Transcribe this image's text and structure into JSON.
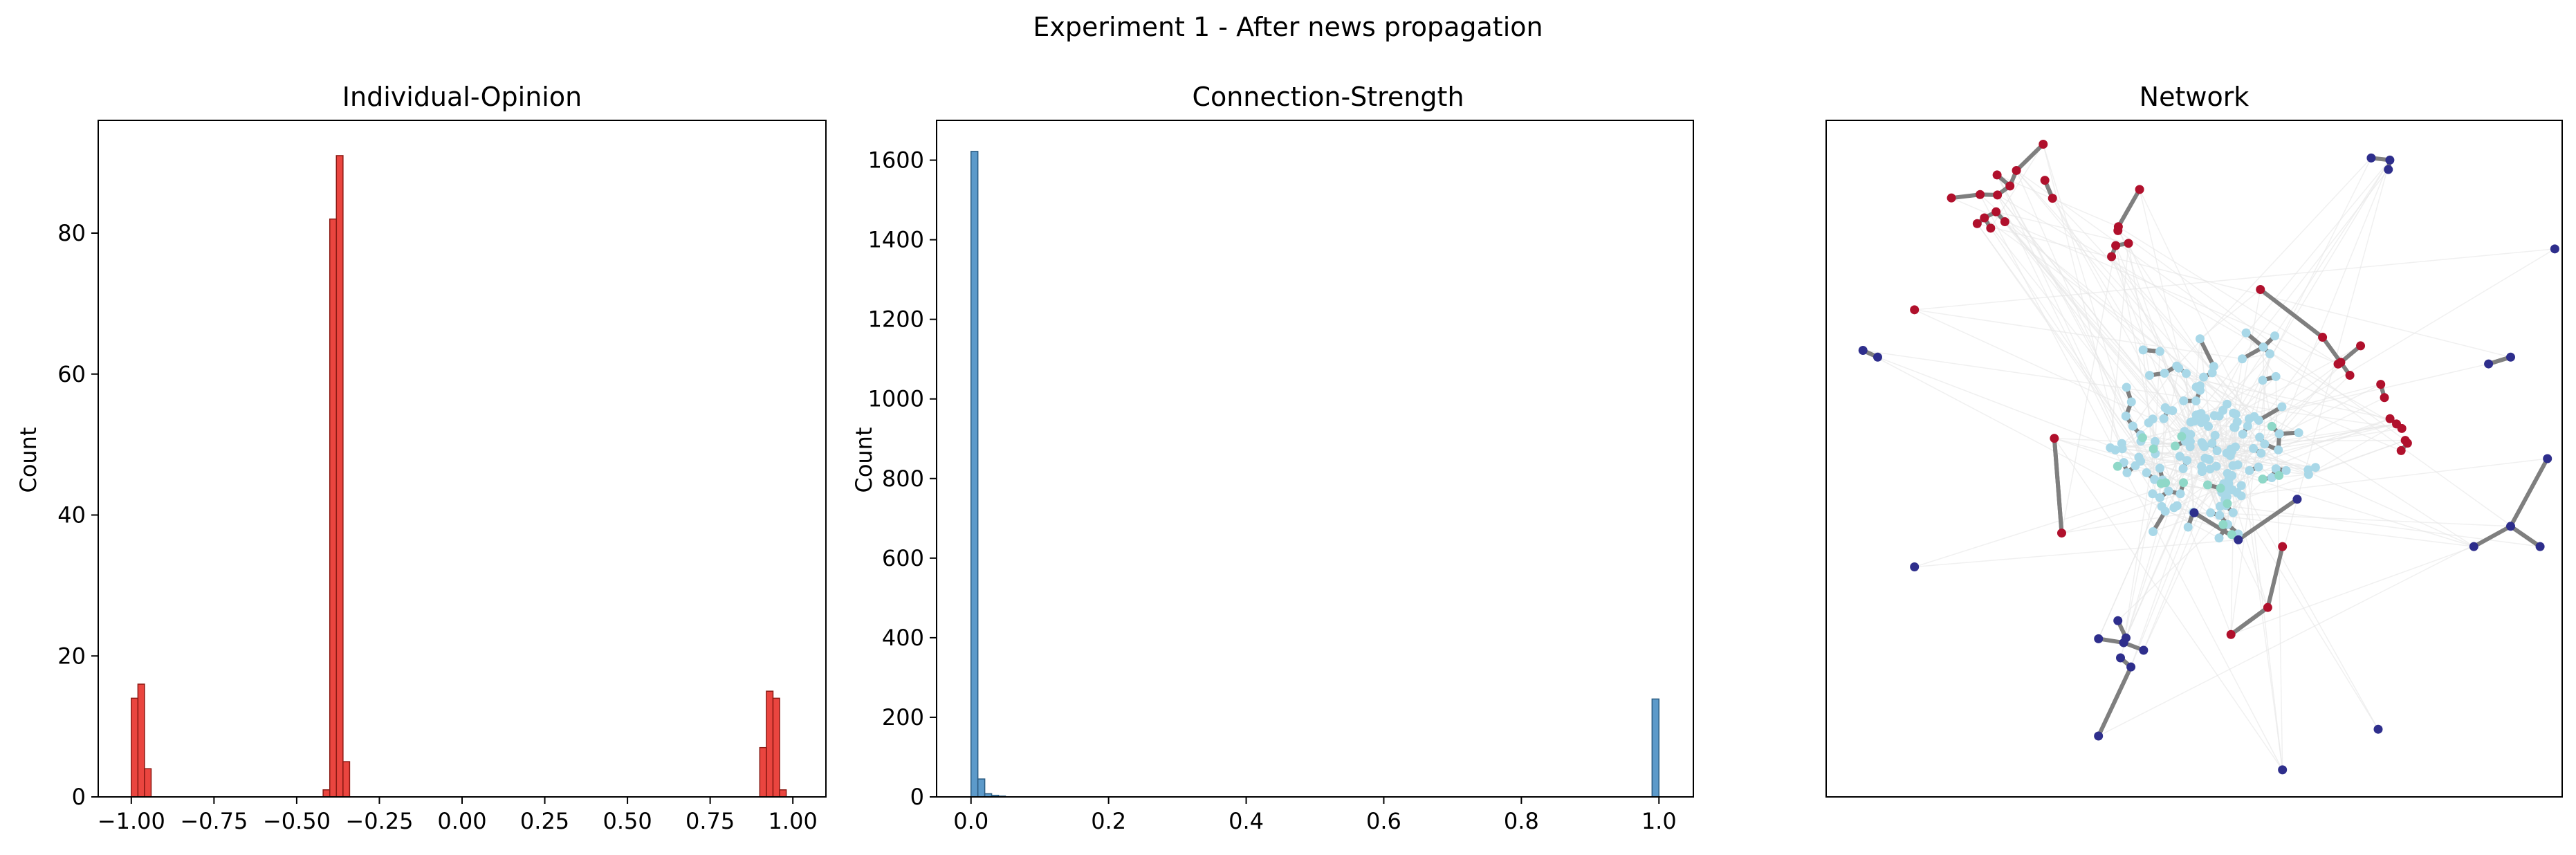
{
  "figure": {
    "title": "Experiment 1 - After news propagation"
  },
  "chart_data": [
    {
      "type": "bar",
      "title": "Individual-Opinion",
      "xlabel": "",
      "ylabel": "Count",
      "xlim": [
        -1.1,
        1.1
      ],
      "ylim": [
        0,
        96
      ],
      "xticks": [
        -1.0,
        -0.75,
        -0.5,
        -0.25,
        0.0,
        0.25,
        0.5,
        0.75,
        1.0
      ],
      "xtick_labels": [
        "−1.00",
        "−0.75",
        "−0.50",
        "−0.25",
        "0.00",
        "0.25",
        "0.50",
        "0.75",
        "1.00"
      ],
      "yticks": [
        0,
        20,
        40,
        60,
        80
      ],
      "ytick_labels": [
        "0",
        "20",
        "40",
        "60",
        "80"
      ],
      "bin_width": 0.02,
      "bins": [
        {
          "x": -1.0,
          "count": 14
        },
        {
          "x": -0.98,
          "count": 16
        },
        {
          "x": -0.96,
          "count": 4
        },
        {
          "x": -0.42,
          "count": 1
        },
        {
          "x": -0.4,
          "count": 82
        },
        {
          "x": -0.38,
          "count": 91
        },
        {
          "x": -0.36,
          "count": 5
        },
        {
          "x": 0.9,
          "count": 7
        },
        {
          "x": 0.92,
          "count": 15
        },
        {
          "x": 0.94,
          "count": 14
        },
        {
          "x": 0.96,
          "count": 1
        }
      ],
      "color": "#e8312a",
      "edge_color": "#8b1a14"
    },
    {
      "type": "bar",
      "title": "Connection-Strength",
      "xlabel": "",
      "ylabel": "Count",
      "xlim": [
        -0.05,
        1.05
      ],
      "ylim": [
        0,
        1700
      ],
      "xticks": [
        0.0,
        0.2,
        0.4,
        0.6,
        0.8,
        1.0
      ],
      "xtick_labels": [
        "0.0",
        "0.2",
        "0.4",
        "0.6",
        "0.8",
        "1.0"
      ],
      "yticks": [
        0,
        200,
        400,
        600,
        800,
        1000,
        1200,
        1400,
        1600
      ],
      "ytick_labels": [
        "0",
        "200",
        "400",
        "600",
        "800",
        "1000",
        "1200",
        "1400",
        "1600"
      ],
      "bin_width": 0.01,
      "bins": [
        {
          "x": 0.0,
          "count": 1622
        },
        {
          "x": 0.01,
          "count": 45
        },
        {
          "x": 0.02,
          "count": 8
        },
        {
          "x": 0.03,
          "count": 4
        },
        {
          "x": 0.04,
          "count": 2
        },
        {
          "x": 0.99,
          "count": 246
        }
      ],
      "color": "#4a8fc4",
      "edge_color": "#2a5a80"
    },
    {
      "type": "scatter",
      "title": "Network",
      "description_kind": "network-graph",
      "node_colors": {
        "red": "#b0102c",
        "navy": "#2e2e8c",
        "light": "#a9d8e8",
        "teal": "#8fd8c8"
      },
      "edge_color": "#7f7f7f",
      "faint_edge_color": "#e6e6e6",
      "clusters": [
        {
          "color": "red",
          "cx": 0.22,
          "cy": 0.12,
          "n": 14,
          "spread": 0.07
        },
        {
          "color": "red",
          "cx": 0.4,
          "cy": 0.17,
          "n": 6,
          "spread": 0.04
        },
        {
          "color": "red",
          "cx": 0.78,
          "cy": 0.43,
          "n": 8,
          "spread": 0.05
        },
        {
          "color": "red",
          "cx": 0.7,
          "cy": 0.35,
          "n": 5,
          "spread": 0.03
        },
        {
          "color": "navy",
          "cx": 0.4,
          "cy": 0.77,
          "n": 7,
          "spread": 0.035
        },
        {
          "color": "navy",
          "cx": 0.76,
          "cy": 0.06,
          "n": 3,
          "spread": 0.03
        },
        {
          "color": "light",
          "cx": 0.52,
          "cy": 0.47,
          "n": 150,
          "spread": 0.13
        },
        {
          "color": "teal",
          "cx": 0.5,
          "cy": 0.5,
          "n": 16,
          "spread": 0.12
        }
      ],
      "outliers": [
        {
          "color": "navy",
          "x": 0.05,
          "y": 0.34
        },
        {
          "color": "navy",
          "x": 0.07,
          "y": 0.35
        },
        {
          "color": "navy",
          "x": 0.12,
          "y": 0.66
        },
        {
          "color": "navy",
          "x": 0.9,
          "y": 0.36
        },
        {
          "color": "navy",
          "x": 0.93,
          "y": 0.35
        },
        {
          "color": "navy",
          "x": 0.98,
          "y": 0.5
        },
        {
          "color": "navy",
          "x": 0.97,
          "y": 0.63
        },
        {
          "color": "navy",
          "x": 0.93,
          "y": 0.6
        },
        {
          "color": "navy",
          "x": 0.88,
          "y": 0.63
        },
        {
          "color": "navy",
          "x": 0.99,
          "y": 0.19
        },
        {
          "color": "navy",
          "x": 0.75,
          "y": 0.9
        },
        {
          "color": "navy",
          "x": 0.62,
          "y": 0.96
        },
        {
          "color": "navy",
          "x": 0.37,
          "y": 0.91
        },
        {
          "color": "red",
          "x": 0.12,
          "y": 0.28
        },
        {
          "color": "red",
          "x": 0.31,
          "y": 0.47
        },
        {
          "color": "red",
          "x": 0.32,
          "y": 0.61
        },
        {
          "color": "red",
          "x": 0.59,
          "y": 0.25
        },
        {
          "color": "red",
          "x": 0.6,
          "y": 0.72
        },
        {
          "color": "red",
          "x": 0.55,
          "y": 0.76
        },
        {
          "color": "red",
          "x": 0.62,
          "y": 0.63
        },
        {
          "color": "navy",
          "x": 0.56,
          "y": 0.62
        },
        {
          "color": "navy",
          "x": 0.64,
          "y": 0.56
        },
        {
          "color": "navy",
          "x": 0.5,
          "y": 0.58
        }
      ]
    }
  ]
}
